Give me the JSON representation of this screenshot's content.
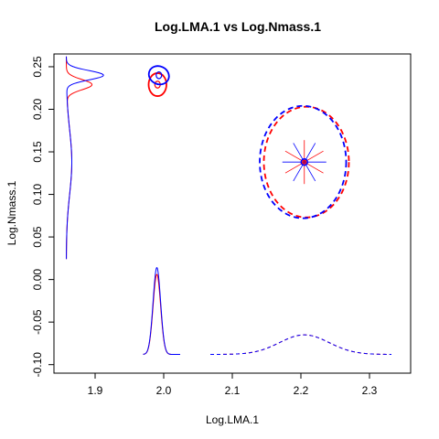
{
  "chart_data": {
    "type": "line",
    "title": "Log.LMA.1 vs Log.Nmass.1",
    "xlabel": "Log.LMA.1",
    "ylabel": "Log.Nmass.1",
    "xlim": [
      1.84,
      2.36
    ],
    "ylim": [
      -0.11,
      0.265
    ],
    "x_ticks": [
      1.9,
      2.0,
      2.1,
      2.2,
      2.3
    ],
    "x_tick_labels": [
      "1.9",
      "2.0",
      "2.1",
      "2.2",
      "2.3"
    ],
    "y_ticks": [
      -0.1,
      -0.05,
      0.0,
      0.05,
      0.1,
      0.15,
      0.2,
      0.25
    ],
    "y_tick_labels": [
      "-0.10",
      "-0.05",
      "0.00",
      "0.05",
      "0.10",
      "0.15",
      "0.20",
      "0.25"
    ],
    "grid": false,
    "legend": "none",
    "colors": {
      "series_a": "#ff0000",
      "series_b": "#0000ff"
    },
    "small_ellipses": {
      "red": {
        "center": [
          1.991,
          0.229
        ],
        "outer_radii": [
          0.013,
          0.0135
        ],
        "inner_radii": [
          0.004,
          0.004
        ]
      },
      "blue": {
        "center": [
          1.993,
          0.24
        ],
        "outer_radii": [
          0.015,
          0.0105
        ],
        "inner_radii": [
          0.004,
          0.004
        ]
      }
    },
    "large_ellipses": {
      "red": {
        "center": [
          2.208,
          0.138
        ],
        "radii": [
          0.062,
          0.065
        ]
      },
      "blue": {
        "center": [
          2.203,
          0.138
        ],
        "radii": [
          0.063,
          0.066
        ]
      }
    },
    "star_center": [
      2.205,
      0.138
    ],
    "x_marginal_narrow": {
      "center": 1.99,
      "sd": 0.0055,
      "baseline": -0.088,
      "peak_red": 0.006,
      "peak_blue": 0.014,
      "x_range": [
        1.97,
        2.024
      ]
    },
    "x_marginal_wide": {
      "center": 2.205,
      "sd": 0.036,
      "baseline": -0.088,
      "peak": -0.065,
      "x_range": [
        2.068,
        2.332
      ]
    },
    "y_marginal": {
      "baseline_x": 1.858,
      "narrow_red": {
        "center": 0.229,
        "sd": 0.006,
        "peak_x": 1.895
      },
      "narrow_blue": {
        "center": 0.24,
        "sd": 0.0055,
        "peak_x": 1.912
      },
      "wide": {
        "center": 0.138,
        "sd": 0.038,
        "peak_x": 1.866
      },
      "y_range": [
        0.024,
        0.262
      ]
    }
  }
}
